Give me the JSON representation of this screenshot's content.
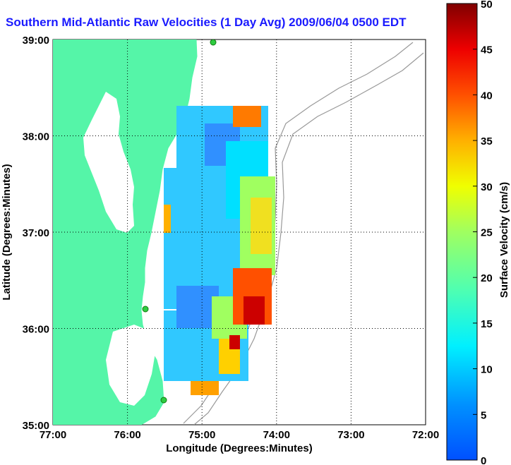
{
  "chart_data": {
    "type": "heatmap",
    "title": "Southern Mid-Atlantic Raw Velocities (1 Day Avg) 2009/06/04 0500 EDT",
    "xlabel": "Longitude (Degrees:Minutes)",
    "ylabel": "Latitude (Degrees:Minutes)",
    "xlim": [
      -77,
      -72
    ],
    "ylim": [
      35,
      39
    ],
    "x_ticks": [
      {
        "value": -77,
        "label": "77:00"
      },
      {
        "value": -76,
        "label": "76:00"
      },
      {
        "value": -75,
        "label": "75:00"
      },
      {
        "value": -74,
        "label": "74:00"
      },
      {
        "value": -73,
        "label": "73:00"
      },
      {
        "value": -72,
        "label": "72:00"
      }
    ],
    "y_ticks": [
      {
        "value": 35,
        "label": "35:00"
      },
      {
        "value": 36,
        "label": "36:00"
      },
      {
        "value": 37,
        "label": "37:00"
      },
      {
        "value": 38,
        "label": "38:00"
      },
      {
        "value": 39,
        "label": "39:00"
      }
    ],
    "grid": true,
    "colorbar": {
      "label": "Surface Velocity (cm/s)",
      "range": [
        0,
        50
      ],
      "ticks": [
        "0",
        "5",
        "10",
        "15",
        "20",
        "25",
        "30",
        "35",
        "40",
        "45",
        "50"
      ]
    },
    "colors": {
      "land": "#55f5a8",
      "title": "#1a1aff"
    }
  }
}
